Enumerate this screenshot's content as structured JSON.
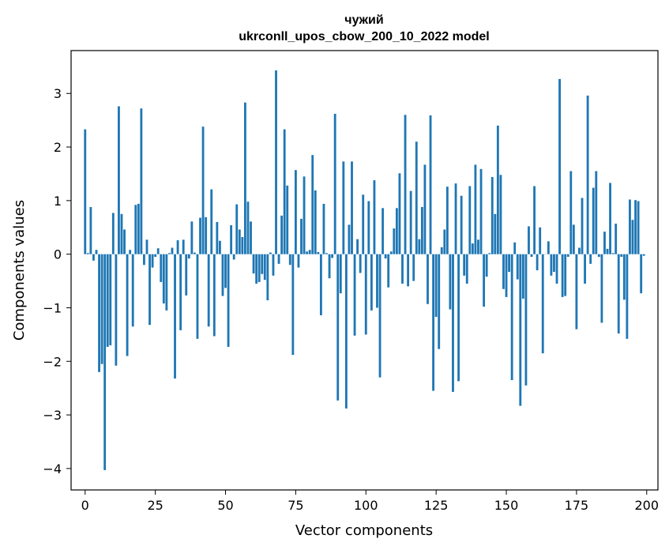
{
  "chart_data": {
    "type": "bar",
    "title": "чужий",
    "subtitle": "ukrconll_upos_cbow_200_10_2022 model",
    "xlabel": "Vector components",
    "ylabel": "Components values",
    "xlim": [
      -5,
      204
    ],
    "ylim": [
      -4.4,
      3.8
    ],
    "xticks": [
      0,
      25,
      50,
      75,
      100,
      125,
      150,
      175,
      200
    ],
    "xtick_labels": [
      "0",
      "25",
      "50",
      "75",
      "100",
      "125",
      "150",
      "175",
      "200"
    ],
    "yticks": [
      -4,
      -3,
      -2,
      -1,
      0,
      1,
      2,
      3
    ],
    "ytick_labels": [
      "−4",
      "−3",
      "−2",
      "−1",
      "0",
      "1",
      "2",
      "3"
    ],
    "grid": false,
    "bar_color": "#1f77b4",
    "x": [
      0,
      1,
      2,
      3,
      4,
      5,
      6,
      7,
      8,
      9,
      10,
      11,
      12,
      13,
      14,
      15,
      16,
      17,
      18,
      19,
      20,
      21,
      22,
      23,
      24,
      25,
      26,
      27,
      28,
      29,
      30,
      31,
      32,
      33,
      34,
      35,
      36,
      37,
      38,
      39,
      40,
      41,
      42,
      43,
      44,
      45,
      46,
      47,
      48,
      49,
      50,
      51,
      52,
      53,
      54,
      55,
      56,
      57,
      58,
      59,
      60,
      61,
      62,
      63,
      64,
      65,
      66,
      67,
      68,
      69,
      70,
      71,
      72,
      73,
      74,
      75,
      76,
      77,
      78,
      79,
      80,
      81,
      82,
      83,
      84,
      85,
      86,
      87,
      88,
      89,
      90,
      91,
      92,
      93,
      94,
      95,
      96,
      97,
      98,
      99,
      100,
      101,
      102,
      103,
      104,
      105,
      106,
      107,
      108,
      109,
      110,
      111,
      112,
      113,
      114,
      115,
      116,
      117,
      118,
      119,
      120,
      121,
      122,
      123,
      124,
      125,
      126,
      127,
      128,
      129,
      130,
      131,
      132,
      133,
      134,
      135,
      136,
      137,
      138,
      139,
      140,
      141,
      142,
      143,
      144,
      145,
      146,
      147,
      148,
      149,
      150,
      151,
      152,
      153,
      154,
      155,
      156,
      157,
      158,
      159,
      160,
      161,
      162,
      163,
      164,
      165,
      166,
      167,
      168,
      169,
      170,
      171,
      172,
      173,
      174,
      175,
      176,
      177,
      178,
      179,
      180,
      181,
      182,
      183,
      184,
      185,
      186,
      187,
      188,
      189,
      190,
      191,
      192,
      193,
      194,
      195,
      196,
      197,
      198,
      199
    ],
    "values": [
      2.33,
      0.02,
      0.88,
      -0.12,
      0.08,
      -2.2,
      -2.05,
      -4.03,
      -1.73,
      -1.7,
      0.77,
      -2.08,
      2.76,
      0.75,
      0.46,
      -1.9,
      0.08,
      -1.35,
      0.92,
      0.94,
      2.72,
      -0.2,
      0.27,
      -1.32,
      -0.25,
      -0.05,
      0.11,
      -0.52,
      -0.92,
      -1.05,
      0.02,
      0.12,
      -2.32,
      0.26,
      -1.42,
      0.27,
      -0.77,
      -0.08,
      0.61,
      0.03,
      -1.58,
      0.68,
      2.38,
      0.69,
      -1.35,
      1.21,
      -1.53,
      0.6,
      0.25,
      -0.78,
      -0.63,
      -1.73,
      0.54,
      -0.1,
      0.93,
      0.46,
      0.32,
      2.83,
      0.98,
      0.61,
      -0.36,
      -0.55,
      -0.52,
      -0.37,
      -0.48,
      -0.86,
      0.03,
      -0.4,
      3.43,
      -0.18,
      0.72,
      2.33,
      1.28,
      -0.2,
      -1.88,
      1.57,
      -0.25,
      0.66,
      1.45,
      0.05,
      0.08,
      1.85,
      1.19,
      0.04,
      -1.14,
      0.94,
      0.02,
      -0.45,
      -0.07,
      2.62,
      -2.73,
      -0.73,
      1.73,
      -2.88,
      0.55,
      1.73,
      -1.52,
      0.28,
      -0.35,
      1.11,
      -1.5,
      0.99,
      -1.05,
      1.38,
      -1.0,
      -2.3,
      0.86,
      -0.08,
      -0.62,
      0.05,
      0.48,
      0.86,
      1.51,
      -0.55,
      2.6,
      -0.6,
      1.18,
      -0.5,
      2.1,
      0.28,
      0.88,
      1.67,
      -0.93,
      2.59,
      -2.55,
      -1.17,
      -1.77,
      0.13,
      0.46,
      1.26,
      -1.03,
      -2.57,
      1.32,
      -2.37,
      1.09,
      -0.4,
      -0.55,
      1.27,
      0.2,
      1.67,
      0.27,
      1.59,
      -0.98,
      -0.42,
      0.02,
      1.44,
      0.75,
      2.4,
      1.48,
      -0.65,
      -0.8,
      -0.33,
      -2.35,
      0.22,
      -0.47,
      -2.83,
      -0.83,
      -2.45,
      0.52,
      -0.05,
      1.27,
      -0.3,
      0.5,
      -1.85,
      0.0,
      0.24,
      -0.4,
      -0.33,
      -0.55,
      3.27,
      -0.8,
      -0.78,
      -0.05,
      1.55,
      0.55,
      -1.4,
      0.12,
      1.05,
      -0.55,
      2.96,
      -0.18,
      1.24,
      1.55,
      -0.05,
      -1.28,
      0.42,
      0.1,
      1.33,
      0.02,
      0.57,
      -1.48,
      -0.05,
      -0.85,
      -1.58,
      1.02,
      0.64,
      1.01,
      0.99,
      -0.73,
      -0.03
    ]
  }
}
